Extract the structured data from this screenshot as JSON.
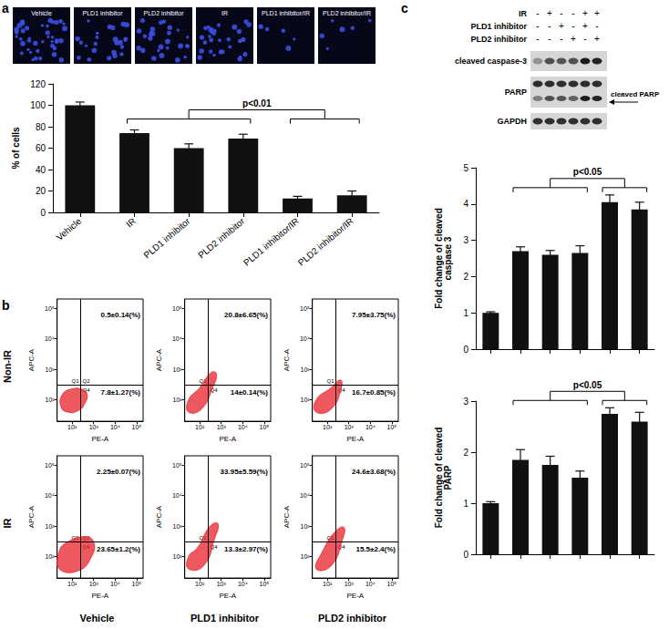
{
  "panel_labels": [
    "a",
    "b",
    "c"
  ],
  "micrographs": {
    "labels": [
      "Vehicle",
      "PLD1 inhibitor",
      "PLD2 inhibitor",
      "IR",
      "PLD1 inhibitor/IR",
      "PLD2 inhibitor/IR"
    ]
  },
  "blot": {
    "conditions": [
      {
        "label": "IR",
        "signs": [
          "-",
          "+",
          "-",
          "-",
          "+",
          "+"
        ]
      },
      {
        "label": "PLD1 inhibitor",
        "signs": [
          "-",
          "-",
          "+",
          "-",
          "+",
          "-"
        ]
      },
      {
        "label": "PLD2 inhibitor",
        "signs": [
          "-",
          "-",
          "-",
          "+",
          "-",
          "+"
        ]
      }
    ],
    "bands": [
      "cleaved caspase-3",
      "PARP",
      "GAPDH"
    ],
    "arrow_label": "cleaved PARP"
  },
  "flow": {
    "row_labels": [
      "Non-IR",
      "IR"
    ],
    "col_labels": [
      "Vehicle",
      "PLD1 inhibitor",
      "PLD2 inhibitor"
    ]
  },
  "chart_data": [
    {
      "type": "bar",
      "ylabel": "% of cells",
      "categories": [
        "Vehicle",
        "IR",
        "PLD1 inhibitor",
        "PLD2 inhibitor",
        "PLD1 inhibitor/IR",
        "PLD2 inhibitor/IR"
      ],
      "values": [
        100,
        74,
        60,
        69,
        13,
        16
      ],
      "errors": [
        3,
        3,
        4,
        4,
        2,
        4
      ],
      "color": "#111111",
      "ylim": [
        0,
        120
      ],
      "yticks": [
        0,
        20,
        40,
        60,
        80,
        100,
        120
      ],
      "grid": false,
      "annotations": [
        {
          "text": "p<0.01",
          "groups": [
            [
              1,
              2,
              3
            ],
            [
              4,
              5
            ]
          ]
        }
      ]
    },
    {
      "type": "scatter",
      "log": true,
      "xlabel": "PE-A",
      "ylabel": "APC-A",
      "color": "#e8202a",
      "xlim": [
        20,
        200000
      ],
      "ylim": [
        20,
        200000
      ],
      "xticks": [
        {
          "value": 100,
          "label": "10²"
        },
        {
          "value": 1000,
          "label": "10³"
        },
        {
          "value": 10000,
          "label": "10⁴"
        },
        {
          "value": 100000,
          "label": "10⁵"
        }
      ],
      "yticks": [
        {
          "value": 100,
          "label": "10²"
        },
        {
          "value": 1000,
          "label": "10³"
        },
        {
          "value": 10000,
          "label": "10⁴"
        },
        {
          "value": 100000,
          "label": "10⁵"
        }
      ],
      "gates": {
        "x": 250,
        "y": 300
      },
      "quadrants": [
        "Q1",
        "Q2",
        "Q4"
      ],
      "annotations": {
        "upper_right": "0.5±0.14(%)",
        "lower_right": "7.8±1.27(%)"
      },
      "cloud": [
        [
          30,
          60
        ],
        [
          60,
          40
        ],
        [
          200,
          45
        ],
        [
          400,
          80
        ],
        [
          500,
          150
        ],
        [
          300,
          220
        ],
        [
          100,
          230
        ],
        [
          35,
          150
        ]
      ]
    },
    {
      "type": "scatter",
      "log": true,
      "xlabel": "PE-A",
      "ylabel": "APC-A",
      "color": "#e8202a",
      "xlim": [
        20,
        200000
      ],
      "ylim": [
        20,
        200000
      ],
      "xticks": [
        {
          "value": 100,
          "label": "10²"
        },
        {
          "value": 1000,
          "label": "10³"
        },
        {
          "value": 10000,
          "label": "10⁴"
        },
        {
          "value": 100000,
          "label": "10⁵"
        }
      ],
      "yticks": [
        {
          "value": 100,
          "label": "10²"
        },
        {
          "value": 1000,
          "label": "10³"
        },
        {
          "value": 10000,
          "label": "10⁴"
        },
        {
          "value": 100000,
          "label": "10⁵"
        }
      ],
      "gates": {
        "x": 250,
        "y": 300
      },
      "quadrants": [
        "Q1",
        "Q4"
      ],
      "annotations": {
        "upper_right": "20.8±6.65(%)",
        "lower_right": "14±0.14(%)"
      },
      "cloud": [
        [
          30,
          40
        ],
        [
          120,
          50
        ],
        [
          400,
          250
        ],
        [
          600,
          700
        ],
        [
          350,
          800
        ],
        [
          100,
          250
        ],
        [
          30,
          100
        ]
      ]
    },
    {
      "type": "scatter",
      "log": true,
      "xlabel": "PE-A",
      "ylabel": "APC-A",
      "color": "#e8202a",
      "xlim": [
        20,
        200000
      ],
      "ylim": [
        20,
        200000
      ],
      "xticks": [
        {
          "value": 100,
          "label": "10²"
        },
        {
          "value": 1000,
          "label": "10³"
        },
        {
          "value": 10000,
          "label": "10⁴"
        },
        {
          "value": 100000,
          "label": "10⁵"
        }
      ],
      "yticks": [
        {
          "value": 100,
          "label": "10²"
        },
        {
          "value": 1000,
          "label": "10³"
        },
        {
          "value": 10000,
          "label": "10⁴"
        },
        {
          "value": 100000,
          "label": "10⁵"
        }
      ],
      "gates": {
        "x": 250,
        "y": 300
      },
      "quadrants": [
        "Q1",
        "Q4"
      ],
      "annotations": {
        "upper_right": "7.95±3.75(%)",
        "lower_right": "16.7±0.85(%)"
      },
      "cloud": [
        [
          30,
          40
        ],
        [
          150,
          50
        ],
        [
          450,
          250
        ],
        [
          400,
          450
        ],
        [
          150,
          250
        ],
        [
          30,
          100
        ]
      ]
    },
    {
      "type": "scatter",
      "log": true,
      "xlabel": "PE-A",
      "ylabel": "APC-A",
      "color": "#e8202a",
      "xlim": [
        20,
        200000
      ],
      "ylim": [
        20,
        200000
      ],
      "xticks": [
        {
          "value": 100,
          "label": "10²"
        },
        {
          "value": 1000,
          "label": "10³"
        },
        {
          "value": 10000,
          "label": "10⁴"
        },
        {
          "value": 100000,
          "label": "10⁵"
        }
      ],
      "yticks": [
        {
          "value": 100,
          "label": "10²"
        },
        {
          "value": 1000,
          "label": "10³"
        },
        {
          "value": 10000,
          "label": "10⁴"
        },
        {
          "value": 100000,
          "label": "10⁵"
        }
      ],
      "gates": {
        "x": 250,
        "y": 300
      },
      "quadrants": [
        "Q1",
        "Q2",
        "Q4"
      ],
      "annotations": {
        "upper_right": "2.25±0.07(%)",
        "lower_right": "23.65±1.2(%)"
      },
      "cloud": [
        [
          25,
          40
        ],
        [
          200,
          35
        ],
        [
          800,
          100
        ],
        [
          1000,
          300
        ],
        [
          400,
          450
        ],
        [
          60,
          300
        ],
        [
          25,
          150
        ]
      ]
    },
    {
      "type": "scatter",
      "log": true,
      "xlabel": "PE-A",
      "ylabel": "APC-A",
      "color": "#e8202a",
      "xlim": [
        20,
        200000
      ],
      "ylim": [
        20,
        200000
      ],
      "xticks": [
        {
          "value": 100,
          "label": "10²"
        },
        {
          "value": 1000,
          "label": "10³"
        },
        {
          "value": 10000,
          "label": "10⁴"
        },
        {
          "value": 100000,
          "label": "10⁵"
        }
      ],
      "yticks": [
        {
          "value": 100,
          "label": "10²"
        },
        {
          "value": 1000,
          "label": "10³"
        },
        {
          "value": 10000,
          "label": "10⁴"
        },
        {
          "value": 100000,
          "label": "10⁵"
        }
      ],
      "gates": {
        "x": 250,
        "y": 300
      },
      "quadrants": [
        "Q1",
        "Q4"
      ],
      "annotations": {
        "upper_right": "33.95±5.59(%)",
        "lower_right": "13.3±2.97(%)"
      },
      "cloud": [
        [
          30,
          40
        ],
        [
          150,
          50
        ],
        [
          500,
          400
        ],
        [
          700,
          1200
        ],
        [
          300,
          1000
        ],
        [
          80,
          200
        ],
        [
          30,
          100
        ]
      ]
    },
    {
      "type": "scatter",
      "log": true,
      "xlabel": "PE-A",
      "ylabel": "APC-A",
      "color": "#e8202a",
      "xlim": [
        20,
        200000
      ],
      "ylim": [
        20,
        200000
      ],
      "xticks": [
        {
          "value": 100,
          "label": "10²"
        },
        {
          "value": 1000,
          "label": "10³"
        },
        {
          "value": 10000,
          "label": "10⁴"
        },
        {
          "value": 100000,
          "label": "10⁵"
        }
      ],
      "yticks": [
        {
          "value": 100,
          "label": "10²"
        },
        {
          "value": 1000,
          "label": "10³"
        },
        {
          "value": 10000,
          "label": "10⁴"
        },
        {
          "value": 100000,
          "label": "10⁵"
        }
      ],
      "gates": {
        "x": 250,
        "y": 300
      },
      "quadrants": [
        "Q1",
        "Q4"
      ],
      "annotations": {
        "upper_right": "24.6±3.68(%)",
        "lower_right": "15.5±2.4(%)"
      },
      "cloud": [
        [
          30,
          40
        ],
        [
          150,
          50
        ],
        [
          500,
          350
        ],
        [
          600,
          900
        ],
        [
          250,
          700
        ],
        [
          60,
          150
        ]
      ]
    },
    {
      "type": "bar",
      "ylabel": "Fold change of cleaved\ncaspase 3",
      "categories": [
        null,
        null,
        null,
        null,
        null,
        null
      ],
      "values": [
        1,
        2.7,
        2.6,
        2.65,
        4.05,
        3.85
      ],
      "errors": [
        0.03,
        0.12,
        0.12,
        0.2,
        0.2,
        0.2
      ],
      "color": "#111111",
      "ylim": [
        0,
        5
      ],
      "yticks": [
        0,
        1,
        2,
        3,
        4,
        5
      ],
      "grid": false,
      "tick_labels": "y",
      "annotations": [
        {
          "text": "p<0.05",
          "groups": [
            [
              1,
              2,
              3
            ],
            [
              4,
              5
            ]
          ]
        }
      ]
    },
    {
      "type": "bar",
      "ylabel": "Fold change of cleaved\nPARP",
      "categories": [
        null,
        null,
        null,
        null,
        null,
        null
      ],
      "values": [
        1,
        1.85,
        1.75,
        1.5,
        2.75,
        2.6
      ],
      "errors": [
        0.03,
        0.2,
        0.17,
        0.13,
        0.12,
        0.18
      ],
      "color": "#111111",
      "ylim": [
        0,
        3
      ],
      "yticks": [
        0,
        1,
        2,
        3
      ],
      "grid": false,
      "tick_labels": "y",
      "annotations": [
        {
          "text": "p<0.05",
          "groups": [
            [
              1,
              2,
              3
            ],
            [
              4,
              5
            ]
          ]
        }
      ]
    }
  ]
}
